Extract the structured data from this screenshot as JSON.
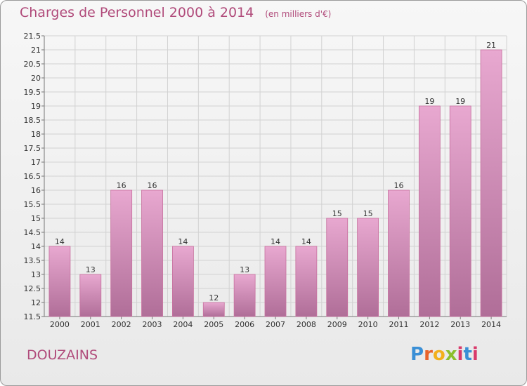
{
  "title": "Charges de Personnel 2000 à 2014",
  "subtitle": "(en milliers d'€)",
  "commune": "DOUZAINS",
  "logo": {
    "text": "Proxiti"
  },
  "colors": {
    "bar_top": "#e8a8d0",
    "bar_bottom": "#b06e98",
    "title": "#b04a7a"
  },
  "chart_data": {
    "type": "bar",
    "categories": [
      "2000",
      "2001",
      "2002",
      "2003",
      "2004",
      "2005",
      "2006",
      "2007",
      "2008",
      "2009",
      "2010",
      "2011",
      "2012",
      "2013",
      "2014"
    ],
    "values": [
      14,
      13,
      16,
      16,
      14,
      12,
      13,
      14,
      14,
      15,
      15,
      16,
      19,
      19,
      21
    ],
    "data_labels": [
      "14",
      "13",
      "16",
      "16",
      "14",
      "12",
      "13",
      "14",
      "14",
      "15",
      "15",
      "16",
      "19",
      "19",
      "21"
    ],
    "ylim": [
      11.5,
      21.5
    ],
    "yticks": [
      "11.5",
      "12",
      "12.5",
      "13",
      "13.5",
      "14",
      "14.5",
      "15",
      "15.5",
      "16",
      "16.5",
      "17",
      "17.5",
      "18",
      "18.5",
      "19",
      "19.5",
      "20",
      "20.5",
      "21",
      "21.5"
    ],
    "ytick_values": [
      11.5,
      12,
      12.5,
      13,
      13.5,
      14,
      14.5,
      15,
      15.5,
      16,
      16.5,
      17,
      17.5,
      18,
      18.5,
      19,
      19.5,
      20,
      20.5,
      21,
      21.5
    ],
    "grid": true,
    "legend": "none"
  }
}
